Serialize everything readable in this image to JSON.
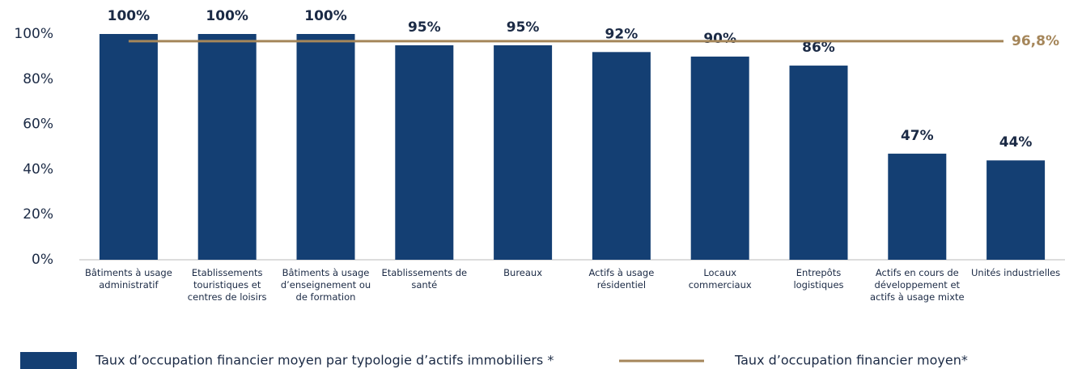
{
  "chart_data": {
    "type": "bar",
    "categories": [
      "Bâtiments à usage administratif",
      "Etablissements touristiques et centres de loisirs",
      "Bâtiments à usage d’enseignement ou de formation",
      "Etablissements de santé",
      "Bureaux",
      "Actifs à usage résidentiel",
      "Locaux commerciaux",
      "Entrepôts logistiques",
      "Actifs en cours de développement et actifs à usage mixte",
      "Unités industrielles"
    ],
    "series": [
      {
        "name": "Taux d’occupation financier moyen par typologie d’actifs immobiliers *",
        "color": "#143f73",
        "values": [
          100,
          100,
          100,
          95,
          95,
          92,
          90,
          86,
          47,
          44
        ],
        "value_labels": [
          "100%",
          "100%",
          "100%",
          "95%",
          "95%",
          "92%",
          "90%",
          "86%",
          "47%",
          "44%"
        ]
      }
    ],
    "reference_line": {
      "name": "Taux d’occupation financier moyen*",
      "color": "#a5865a",
      "value": 96.8,
      "label": "96,8%"
    },
    "ylim": [
      0,
      100
    ],
    "yticks": [
      {
        "value": 0,
        "label": "0%"
      },
      {
        "value": 20,
        "label": "20%"
      },
      {
        "value": 40,
        "label": "40%"
      },
      {
        "value": 60,
        "label": "60%"
      },
      {
        "value": 80,
        "label": "80%"
      },
      {
        "value": 100,
        "label": "100%"
      }
    ],
    "grid": false
  }
}
